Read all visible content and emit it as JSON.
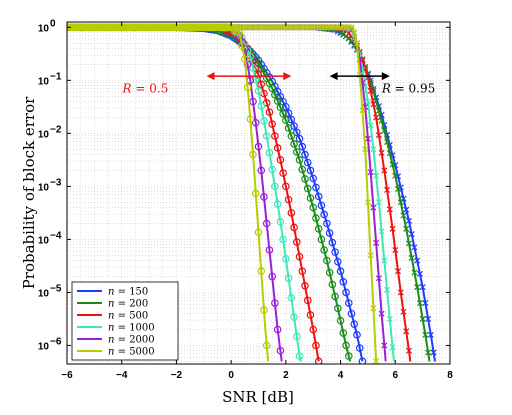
{
  "chart_data": {
    "type": "line",
    "title": "",
    "xlabel": "SNR [dB]",
    "ylabel": "Probability of block error",
    "xlim": [
      -6,
      8
    ],
    "ylim_log10": [
      -6.35,
      0.1
    ],
    "yscale": "log",
    "grid": true,
    "legend_location": "bottom-left",
    "xticks": [
      -6,
      -4,
      -2,
      0,
      2,
      4,
      6,
      8
    ],
    "xtick_labels": [
      "−6",
      "−4",
      "−2",
      "0",
      "2",
      "4",
      "6",
      "8"
    ],
    "yticks": [
      0,
      -1,
      -2,
      -3,
      -4,
      -5,
      -6
    ],
    "ytick_base": "10",
    "ytick_exponents": [
      "0",
      "−1",
      "−2",
      "−3",
      "−4",
      "−5",
      "−6"
    ],
    "legend_var": "n",
    "annotations": [
      {
        "text_var": "R",
        "text_value": " = 0.5",
        "x_from": -0.9,
        "x_to": 2.2,
        "y_log10": -0.92,
        "color": "#ee1111"
      },
      {
        "text_var": "R",
        "text_value": " = 0.95",
        "x_from": 3.6,
        "x_to": 5.8,
        "y_log10": -0.92,
        "color": "#000000"
      }
    ],
    "series": [
      {
        "name": "150",
        "color": "#1f3cff",
        "marker": "circle",
        "rate": "0.5",
        "points": [
          [
            -6,
            0
          ],
          [
            -2,
            0
          ],
          [
            -1,
            -0.02
          ],
          [
            -0.5,
            -0.06
          ],
          [
            0,
            -0.16
          ],
          [
            0.5,
            -0.34
          ],
          [
            1,
            -0.62
          ],
          [
            1.5,
            -1.02
          ],
          [
            2,
            -1.5
          ],
          [
            2.5,
            -2.1
          ],
          [
            3,
            -2.85
          ],
          [
            3.5,
            -3.7
          ],
          [
            4,
            -4.6
          ],
          [
            4.3,
            -5.2
          ],
          [
            4.6,
            -5.8
          ],
          [
            4.8,
            -6.3
          ]
        ]
      },
      {
        "name": "150",
        "color": "#1f3cff",
        "marker": "x",
        "rate": "0.95",
        "points": [
          [
            -6,
            0
          ],
          [
            3,
            0
          ],
          [
            3.8,
            -0.05
          ],
          [
            4.3,
            -0.2
          ],
          [
            4.7,
            -0.5
          ],
          [
            5.1,
            -1.0
          ],
          [
            5.5,
            -1.65
          ],
          [
            6,
            -2.6
          ],
          [
            6.5,
            -3.65
          ],
          [
            7,
            -4.9
          ],
          [
            7.3,
            -5.8
          ],
          [
            7.45,
            -6.3
          ]
        ]
      },
      {
        "name": "200",
        "color": "#1a8c1a",
        "marker": "circle",
        "rate": "0.5",
        "points": [
          [
            -6,
            0
          ],
          [
            -1.5,
            0
          ],
          [
            -0.7,
            -0.02
          ],
          [
            0,
            -0.13
          ],
          [
            0.5,
            -0.34
          ],
          [
            1,
            -0.68
          ],
          [
            1.5,
            -1.15
          ],
          [
            2,
            -1.75
          ],
          [
            2.5,
            -2.5
          ],
          [
            3,
            -3.4
          ],
          [
            3.5,
            -4.4
          ],
          [
            3.9,
            -5.3
          ],
          [
            4.2,
            -6.0
          ],
          [
            4.35,
            -6.3
          ]
        ]
      },
      {
        "name": "200",
        "color": "#1a8c1a",
        "marker": "x",
        "rate": "0.95",
        "points": [
          [
            -6,
            0
          ],
          [
            3.2,
            0
          ],
          [
            3.9,
            -0.05
          ],
          [
            4.4,
            -0.25
          ],
          [
            4.8,
            -0.6
          ],
          [
            5.2,
            -1.2
          ],
          [
            5.6,
            -1.95
          ],
          [
            6,
            -2.8
          ],
          [
            6.4,
            -3.8
          ],
          [
            6.8,
            -4.9
          ],
          [
            7.1,
            -5.8
          ],
          [
            7.25,
            -6.3
          ]
        ]
      },
      {
        "name": "500",
        "color": "#ee1111",
        "marker": "circle",
        "rate": "0.5",
        "points": [
          [
            -6,
            0
          ],
          [
            -0.8,
            0
          ],
          [
            -0.3,
            -0.02
          ],
          [
            0.2,
            -0.13
          ],
          [
            0.6,
            -0.4
          ],
          [
            1,
            -0.9
          ],
          [
            1.4,
            -1.6
          ],
          [
            1.8,
            -2.5
          ],
          [
            2.2,
            -3.5
          ],
          [
            2.6,
            -4.6
          ],
          [
            3,
            -5.7
          ],
          [
            3.2,
            -6.3
          ]
        ]
      },
      {
        "name": "500",
        "color": "#ee1111",
        "marker": "x",
        "rate": "0.95",
        "points": [
          [
            -6,
            0
          ],
          [
            3.8,
            0
          ],
          [
            4.2,
            -0.05
          ],
          [
            4.6,
            -0.3
          ],
          [
            5,
            -0.95
          ],
          [
            5.3,
            -1.7
          ],
          [
            5.6,
            -2.7
          ],
          [
            5.9,
            -3.8
          ],
          [
            6.2,
            -5.0
          ],
          [
            6.5,
            -6.1
          ],
          [
            6.55,
            -6.3
          ]
        ]
      },
      {
        "name": "1000",
        "color": "#3fe8b8",
        "marker": "circle",
        "rate": "0.5",
        "points": [
          [
            -6,
            0
          ],
          [
            -0.4,
            0
          ],
          [
            0,
            -0.02
          ],
          [
            0.4,
            -0.2
          ],
          [
            0.7,
            -0.55
          ],
          [
            1,
            -1.2
          ],
          [
            1.3,
            -2.05
          ],
          [
            1.6,
            -3.0
          ],
          [
            1.9,
            -4.0
          ],
          [
            2.2,
            -5.1
          ],
          [
            2.5,
            -6.2
          ],
          [
            2.55,
            -6.3
          ]
        ]
      },
      {
        "name": "1000",
        "color": "#3fe8b8",
        "marker": "x",
        "rate": "0.95",
        "points": [
          [
            -6,
            0
          ],
          [
            4.1,
            0
          ],
          [
            4.4,
            -0.05
          ],
          [
            4.7,
            -0.5
          ],
          [
            5,
            -1.4
          ],
          [
            5.2,
            -2.3
          ],
          [
            5.4,
            -3.3
          ],
          [
            5.6,
            -4.4
          ],
          [
            5.8,
            -5.5
          ],
          [
            5.95,
            -6.3
          ]
        ]
      },
      {
        "name": "2000",
        "color": "#9b1fd6",
        "marker": "circle",
        "rate": "0.5",
        "points": [
          [
            -6,
            0
          ],
          [
            -0.2,
            0
          ],
          [
            0.2,
            -0.05
          ],
          [
            0.5,
            -0.4
          ],
          [
            0.7,
            -1.0
          ],
          [
            0.9,
            -1.8
          ],
          [
            1.1,
            -2.7
          ],
          [
            1.3,
            -3.7
          ],
          [
            1.5,
            -4.7
          ],
          [
            1.7,
            -5.7
          ],
          [
            1.85,
            -6.3
          ]
        ]
      },
      {
        "name": "2000",
        "color": "#9b1fd6",
        "marker": "x",
        "rate": "0.95",
        "points": [
          [
            -6,
            0
          ],
          [
            4.3,
            0
          ],
          [
            4.5,
            -0.1
          ],
          [
            4.7,
            -0.6
          ],
          [
            4.9,
            -1.5
          ],
          [
            5.05,
            -2.4
          ],
          [
            5.2,
            -3.4
          ],
          [
            5.35,
            -4.4
          ],
          [
            5.5,
            -5.4
          ],
          [
            5.65,
            -6.3
          ]
        ]
      },
      {
        "name": "5000",
        "color": "#b8cc00",
        "marker": "circle",
        "rate": "0.5",
        "points": [
          [
            -6,
            0
          ],
          [
            0,
            0
          ],
          [
            0.3,
            -0.1
          ],
          [
            0.5,
            -0.6
          ],
          [
            0.65,
            -1.4
          ],
          [
            0.8,
            -2.4
          ],
          [
            0.95,
            -3.5
          ],
          [
            1.1,
            -4.6
          ],
          [
            1.25,
            -5.7
          ],
          [
            1.35,
            -6.3
          ]
        ]
      },
      {
        "name": "5000",
        "color": "#b8cc00",
        "marker": "x",
        "rate": "0.95",
        "points": [
          [
            -6,
            0
          ],
          [
            4.45,
            0
          ],
          [
            4.6,
            -0.3
          ],
          [
            4.75,
            -1.2
          ],
          [
            4.9,
            -2.3
          ],
          [
            5.0,
            -3.3
          ],
          [
            5.1,
            -4.3
          ],
          [
            5.2,
            -5.3
          ],
          [
            5.3,
            -6.3
          ]
        ]
      }
    ]
  }
}
